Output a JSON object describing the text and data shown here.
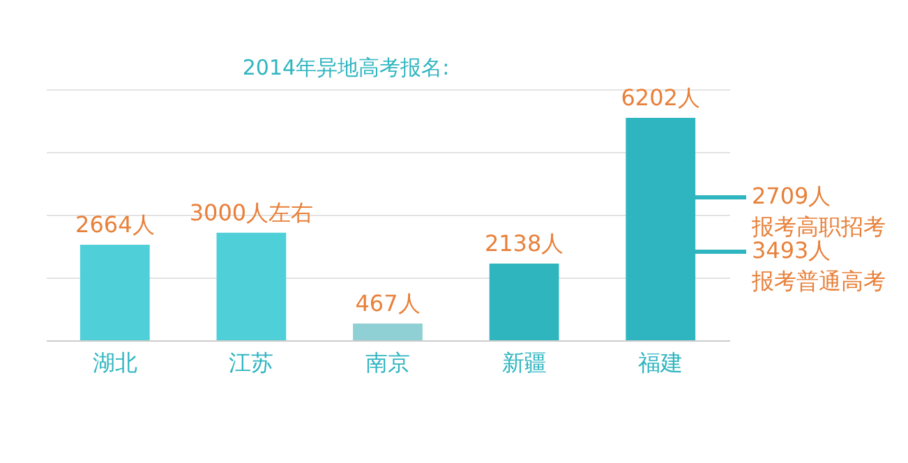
{
  "chart_data": {
    "type": "bar",
    "title": "2014年异地高考报名:",
    "categories": [
      "湖北",
      "江苏",
      "南京",
      "新疆",
      "福建"
    ],
    "values": [
      2664,
      3000,
      467,
      2138,
      6202
    ],
    "colors": [
      "#4fcfd8",
      "#4fcfd8",
      "#8fd0d4",
      "#2fb5bd",
      "#2fb5c0"
    ],
    "value_labels": [
      "2664人",
      "3000人左右",
      "467人",
      "2138人",
      "6202人"
    ],
    "ylim": [
      0,
      7000
    ],
    "yticks": [
      {
        "value": 0,
        "label": null
      },
      {
        "value": 1750,
        "label": null
      },
      {
        "value": 3500,
        "label": null
      },
      {
        "value": 5250,
        "label": null
      },
      {
        "value": 7000,
        "label": null
      }
    ],
    "grid": "y",
    "tick_labels": "x",
    "annotations": [
      "2709人",
      "报考高职招考",
      "3493人",
      "报考普通高考"
    ]
  }
}
